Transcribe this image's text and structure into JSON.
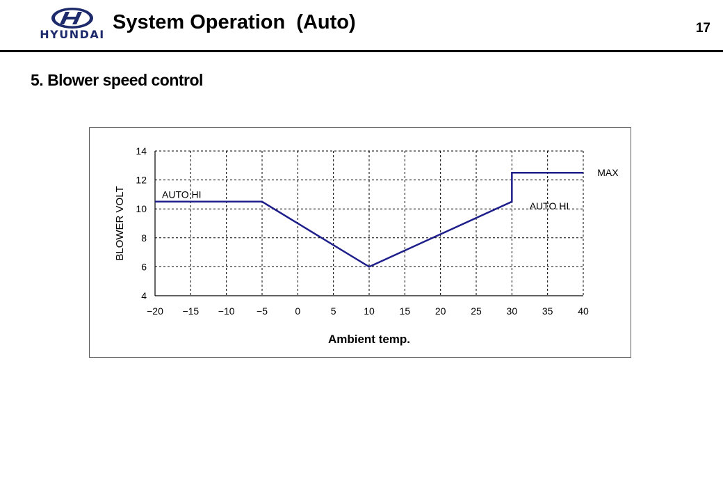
{
  "header": {
    "brand": "HYUNDAI",
    "title": "System Operation  (Auto)",
    "page_number": "17"
  },
  "section": {
    "heading": "5. Blower speed control"
  },
  "colors": {
    "series": "#1f1f8c",
    "grid": "#000000",
    "brand": "#1d2a6b"
  },
  "chart_data": {
    "type": "line",
    "title": "",
    "xlabel": "Ambient temp.",
    "ylabel": "BLOWER VOLT",
    "xlim": [
      -20,
      40
    ],
    "ylim": [
      4,
      14
    ],
    "xticks": [
      -20,
      -15,
      -10,
      -5,
      0,
      5,
      10,
      15,
      20,
      25,
      30,
      35,
      40
    ],
    "yticks": [
      4,
      6,
      8,
      10,
      12,
      14
    ],
    "grid": true,
    "grid_style": "dashed",
    "series": [
      {
        "x": [
          -20,
          -5,
          10,
          30,
          30,
          40
        ],
        "y": [
          10.5,
          10.5,
          6,
          10.5,
          12.5,
          12.5
        ]
      }
    ],
    "annotations": [
      {
        "text": "AUTO HI",
        "x": -20,
        "y": 11
      },
      {
        "text": "AUTO HI",
        "x": 31.5,
        "y": 10.2
      },
      {
        "text": "MAX",
        "x": 41,
        "y": 12.5
      }
    ]
  }
}
